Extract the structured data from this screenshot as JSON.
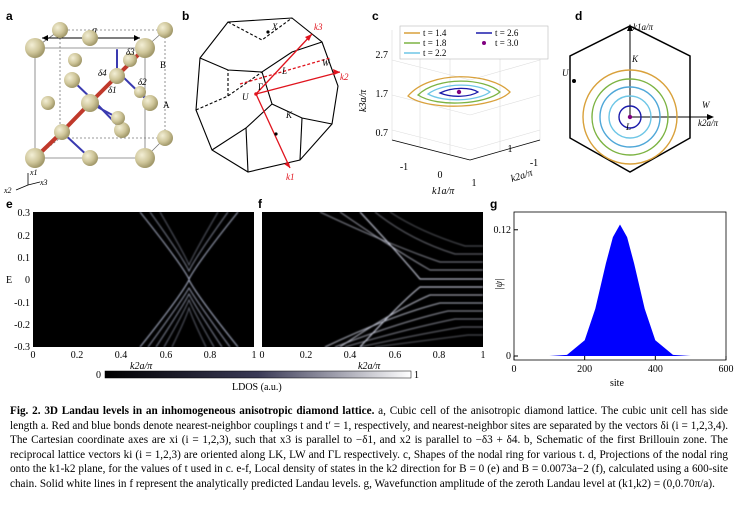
{
  "panels": {
    "a": {
      "label": "a",
      "lattice_const": "a",
      "vectors": [
        "δ1",
        "δ2",
        "δ3",
        "δ4"
      ],
      "sites": [
        "A",
        "B"
      ],
      "axes": [
        "x1",
        "x2",
        "x3"
      ]
    },
    "b": {
      "label": "b",
      "points": [
        "X",
        "L",
        "W",
        "U",
        "K",
        "Γ"
      ],
      "axes": [
        "k1",
        "k2",
        "k3"
      ]
    },
    "c": {
      "label": "c",
      "legend": [
        "t = 1.4",
        "t = 1.8",
        "t = 2.2",
        "t = 2.6",
        "t = 3.0"
      ],
      "legend_colors": [
        "#d9a13b",
        "#7cb342",
        "#6ec6e6",
        "#1a1aaa",
        "#800080"
      ],
      "ylabel": "k3a/π",
      "xlabel": "k1a/π",
      "zlabel": "k2a/π",
      "yticks": [
        "2.7",
        "1.7",
        "0.7"
      ],
      "xticks": [
        "-1",
        "0",
        "1"
      ],
      "zticks": [
        "1",
        "-1"
      ]
    },
    "d": {
      "label": "d",
      "points": [
        "K",
        "U",
        "W",
        "L"
      ],
      "xlabel": "k2a/π",
      "ylabel": "k1a/π",
      "ring_colors": [
        "#d9a13b",
        "#7cb342",
        "#4fa7d8",
        "#6ec6e6",
        "#1a1aaa"
      ]
    },
    "e": {
      "label": "e",
      "ylabel": "E",
      "xlabel": "k2a/π",
      "yticks": [
        "0.3",
        "0.2",
        "0.1",
        "0",
        "-0.1",
        "-0.2",
        "-0.3"
      ],
      "xticks": [
        "0",
        "0.2",
        "0.4",
        "0.6",
        "0.8",
        "1"
      ]
    },
    "f": {
      "label": "f",
      "xlabel": "k2a/π",
      "xticks": [
        "0",
        "0.2",
        "0.4",
        "0.6",
        "0.8",
        "1"
      ]
    },
    "g": {
      "label": "g",
      "ylabel": "|ψ|",
      "xlabel": "site",
      "yticks": [
        "0.12",
        "0"
      ],
      "xticks": [
        "0",
        "200",
        "400",
        "600"
      ],
      "fill_color": "#0000ff"
    },
    "colorbar": {
      "min": "0",
      "max": "1",
      "label": "LDOS (a.u.)"
    }
  },
  "chart_data": {
    "type": "area",
    "title": "",
    "xlabel": "site",
    "ylabel": "|ψ|",
    "xlim": [
      0,
      600
    ],
    "ylim": [
      0,
      0.135
    ],
    "peak": {
      "x": 300,
      "y": 0.125
    },
    "x": [
      0,
      100,
      150,
      200,
      230,
      260,
      280,
      300,
      320,
      340,
      370,
      400,
      450,
      500,
      600
    ],
    "values": [
      0.0,
      0.0,
      0.001,
      0.015,
      0.045,
      0.088,
      0.113,
      0.125,
      0.113,
      0.088,
      0.045,
      0.015,
      0.001,
      0.0,
      0.0
    ]
  },
  "caption": {
    "fig_label": "Fig. 2.",
    "title": "3D Landau levels in an inhomogeneous anisotropic diamond lattice.",
    "body": " a, Cubic cell of the anisotropic diamond lattice. The cubic unit cell has side length a. Red and blue bonds denote nearest-neighbor couplings t and t′ = 1, respectively, and nearest-neighbor sites are separated by the vectors δi (i = 1,2,3,4). The Cartesian coordinate axes are xi (i = 1,2,3), such that x3 is parallel to −δ1, and x2 is parallel to −δ3 + δ4. b, Schematic of the first Brillouin zone. The reciprocal lattice vectors ki (i = 1,2,3) are oriented along LK, LW and ΓL respectively. c, Shapes of the nodal ring for various t. d, Projections of the nodal ring onto the k1-k2 plane, for the values of t used in c. e-f, Local density of states in the k2 direction for B = 0 (e) and B = 0.0073a−2 (f), calculated using a 600-site chain. Solid white lines in f represent the analytically predicted Landau levels. g, Wavefunction amplitude of the zeroth Landau level at (k1,k2) = (0,0.70π/a)."
  }
}
